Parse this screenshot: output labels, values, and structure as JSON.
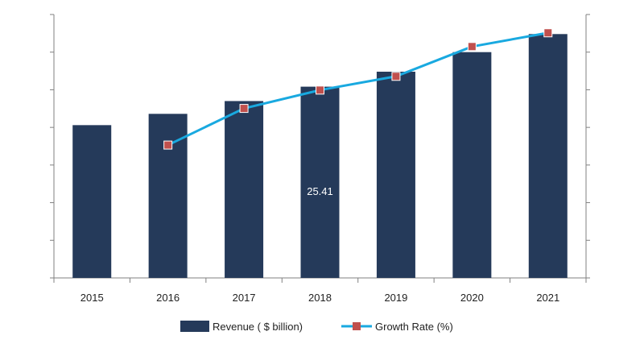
{
  "chart_data": {
    "type": "bar",
    "categories": [
      "2015",
      "2016",
      "2017",
      "2018",
      "2019",
      "2020",
      "2021"
    ],
    "series": [
      {
        "name": "Revenue ( $ billion)",
        "type": "bar",
        "axis": "left",
        "values": [
          20.3,
          21.8,
          23.5,
          25.41,
          27.4,
          30.0,
          32.4
        ]
      },
      {
        "name": "Growth Rate (%)",
        "type": "line",
        "axis": "right",
        "values": [
          null,
          5.8,
          7.4,
          8.2,
          8.8,
          10.1,
          10.7
        ]
      }
    ],
    "data_labels": [
      {
        "series": "Revenue ( $ billion)",
        "category": "2018",
        "text": "25.41"
      }
    ],
    "ylim_left": [
      0,
      35
    ],
    "ylim_right": [
      0,
      11.5
    ],
    "grid": false,
    "legend_position": "bottom",
    "colors": {
      "bar": "#253a5a",
      "line": "#19a9e0",
      "marker": "#c0504d",
      "axis": "#808080"
    }
  }
}
